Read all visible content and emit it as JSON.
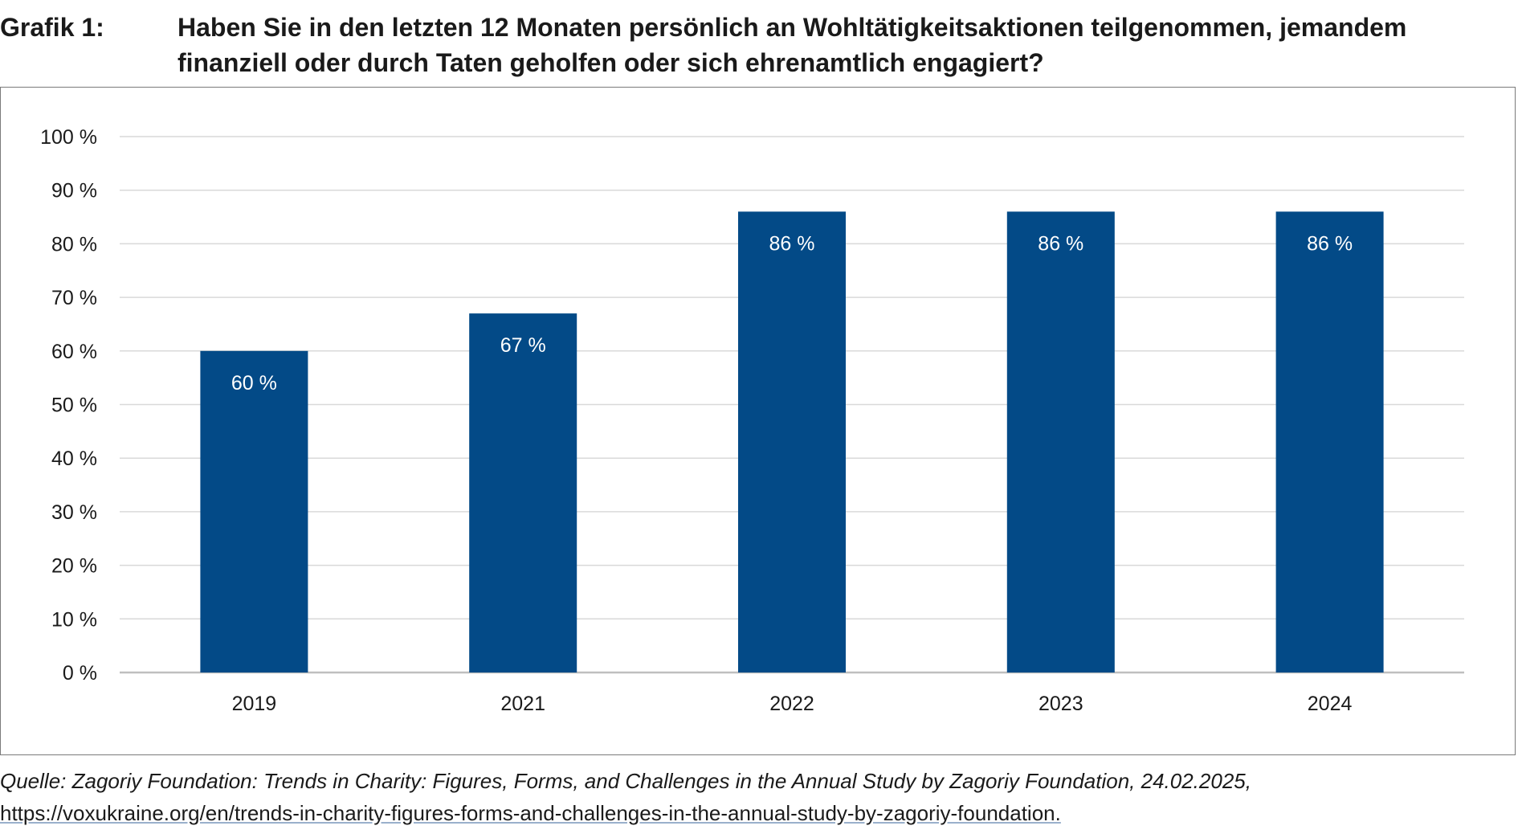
{
  "header": {
    "label": "Grafik 1:",
    "title": "Haben Sie in den letzten 12 Monaten persönlich an Wohltätigkeitsaktionen teilgenommen, jemandem finanziell oder durch Taten geholfen oder sich ehrenamtlich engagiert?"
  },
  "source": {
    "text": "Quelle: Zagoriy Foundation: Trends in Charity: Figures, Forms, and Challenges in the Annual Study by Zagoriy Foundation, 24.02.2025, ",
    "url": "https://voxukraine.org/en/trends-in-charity-figures-forms-and-challenges-in-the-annual-study-by-zagoriy-foundation."
  },
  "colors": {
    "bar": "#034a87",
    "grid": "#d9d9d9",
    "axis": "#bfbfbf",
    "label_inside": "#ffffff"
  },
  "chart_data": {
    "type": "bar",
    "title": "",
    "xlabel": "",
    "ylabel": "",
    "categories": [
      "2019",
      "2021",
      "2022",
      "2023",
      "2024"
    ],
    "values": [
      60,
      67,
      86,
      86,
      86
    ],
    "data_labels": [
      "60 %",
      "67 %",
      "86 %",
      "86 %",
      "86 %"
    ],
    "ylim": [
      0,
      100
    ],
    "yticks": [
      0,
      10,
      20,
      30,
      40,
      50,
      60,
      70,
      80,
      90,
      100
    ],
    "ytick_labels": [
      "0 %",
      "10 %",
      "20 %",
      "30 %",
      "40 %",
      "50 %",
      "60 %",
      "70 %",
      "80 %",
      "90 %",
      "100 %"
    ],
    "grid": true,
    "legend": "none"
  }
}
